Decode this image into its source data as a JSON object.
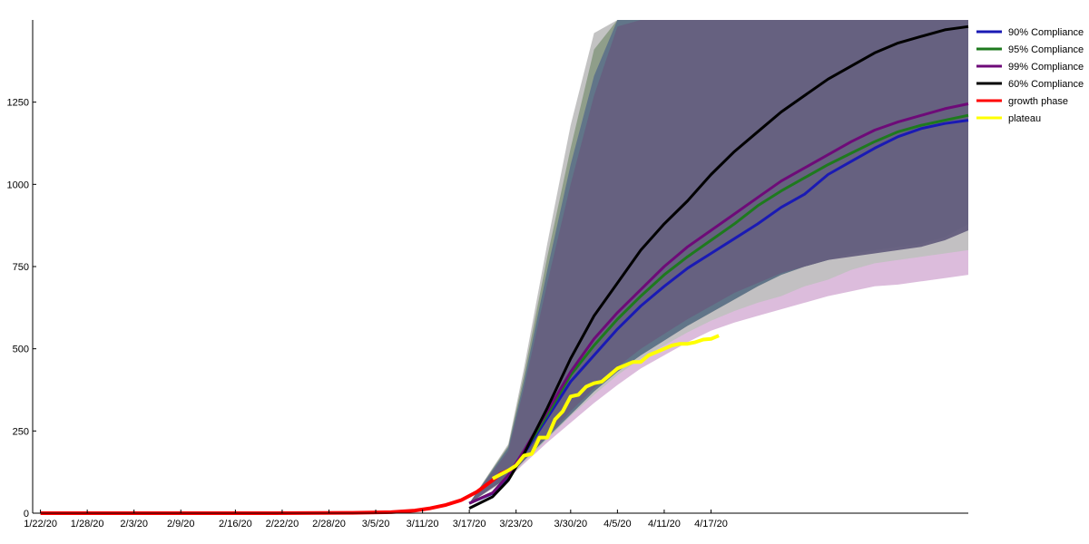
{
  "chart_data": {
    "type": "line",
    "title": "",
    "xlabel": "",
    "ylabel": "",
    "x_ticks": [
      "1/22/20",
      "1/28/20",
      "2/3/20",
      "2/9/20",
      "2/16/20",
      "2/22/20",
      "2/28/20",
      "3/5/20",
      "3/11/20",
      "3/17/20",
      "3/23/20",
      "3/30/20",
      "4/5/20",
      "4/11/20",
      "4/17/20"
    ],
    "x_tick_day": [
      0,
      6,
      12,
      18,
      25,
      31,
      37,
      43,
      49,
      55,
      61,
      68,
      74,
      80,
      86
    ],
    "xlim_day": [
      -1,
      119
    ],
    "ylim": [
      0,
      1500
    ],
    "y_ticks": [
      0,
      250,
      500,
      750,
      1000,
      1250
    ],
    "grid": false,
    "legend_position": "top-right",
    "colors": {
      "90": "#1a1ab4",
      "95": "#1e7a1e",
      "99": "#6e0a78",
      "60": "#000000",
      "growth": "#ff0000",
      "plateau": "#ffff00"
    },
    "series": [
      {
        "name": "90% Compliance",
        "color_key": "90",
        "x": [
          55,
          58,
          60,
          62,
          65,
          68,
          71,
          74,
          77,
          80,
          83,
          86,
          89,
          92,
          95,
          98,
          101,
          104,
          107,
          110,
          113,
          116,
          119
        ],
        "y": [
          30,
          60,
          110,
          180,
          290,
          400,
          480,
          560,
          630,
          690,
          745,
          790,
          835,
          880,
          930,
          970,
          1030,
          1070,
          1110,
          1145,
          1170,
          1185,
          1195
        ]
      },
      {
        "name": "95% Compliance",
        "color_key": "95",
        "x": [
          55,
          58,
          60,
          62,
          65,
          68,
          71,
          74,
          77,
          80,
          83,
          86,
          89,
          92,
          95,
          98,
          101,
          104,
          107,
          110,
          113,
          116,
          119
        ],
        "y": [
          30,
          62,
          115,
          185,
          300,
          420,
          510,
          590,
          660,
          725,
          780,
          830,
          880,
          935,
          980,
          1020,
          1060,
          1095,
          1130,
          1160,
          1180,
          1195,
          1210
        ]
      },
      {
        "name": "99% Compliance",
        "color_key": "99",
        "x": [
          55,
          58,
          60,
          62,
          65,
          68,
          71,
          74,
          77,
          80,
          83,
          86,
          89,
          92,
          95,
          98,
          101,
          104,
          107,
          110,
          113,
          116,
          119
        ],
        "y": [
          30,
          62,
          115,
          190,
          310,
          430,
          530,
          610,
          680,
          750,
          810,
          860,
          910,
          960,
          1010,
          1050,
          1090,
          1130,
          1165,
          1190,
          1210,
          1230,
          1245
        ]
      },
      {
        "name": "60% Compliance",
        "color_key": "60",
        "x": [
          55,
          58,
          60,
          62,
          65,
          68,
          71,
          74,
          77,
          80,
          83,
          86,
          89,
          92,
          95,
          98,
          101,
          104,
          107,
          110,
          113,
          116,
          119
        ],
        "y": [
          15,
          50,
          100,
          180,
          320,
          470,
          600,
          700,
          800,
          880,
          950,
          1030,
          1100,
          1160,
          1220,
          1270,
          1320,
          1360,
          1400,
          1430,
          1450,
          1470,
          1480
        ]
      },
      {
        "name": "growth phase",
        "color_key": "growth",
        "x": [
          0,
          10,
          20,
          30,
          40,
          45,
          48,
          50,
          52,
          54,
          56,
          58,
          59,
          60
        ],
        "y": [
          0,
          0,
          0,
          0,
          1,
          3,
          8,
          15,
          25,
          40,
          65,
          100,
          120,
          130
        ]
      },
      {
        "name": "plateau",
        "color_key": "plateau",
        "x": [
          58,
          60,
          61,
          62,
          63,
          64,
          65,
          66,
          67,
          68,
          69,
          70,
          71,
          72,
          73,
          74,
          75,
          76,
          77,
          78,
          79,
          80,
          81,
          82,
          83,
          84,
          85,
          86,
          87
        ],
        "y": [
          105,
          130,
          145,
          175,
          180,
          230,
          230,
          285,
          310,
          355,
          360,
          385,
          395,
          400,
          420,
          440,
          450,
          460,
          460,
          480,
          490,
          500,
          510,
          515,
          515,
          520,
          528,
          530,
          540
        ]
      }
    ],
    "bands": [
      {
        "lower_x": [
          55,
          60,
          62,
          65,
          68,
          71,
          74,
          77,
          80,
          83,
          86,
          89,
          92,
          95,
          98,
          101,
          104,
          107,
          110,
          113,
          116,
          119
        ],
        "lower_y": [
          30,
          105,
          150,
          215,
          275,
          335,
          390,
          440,
          480,
          520,
          555,
          580,
          600,
          620,
          640,
          660,
          675,
          690,
          695,
          705,
          715,
          725
        ],
        "upper_x": [
          55,
          60,
          62,
          65,
          68,
          71,
          74,
          77,
          80,
          83,
          86,
          89,
          92,
          95,
          98,
          101,
          104,
          107,
          110,
          113,
          116,
          119
        ],
        "upper_y": [
          30,
          200,
          420,
          760,
          1060,
          1340,
          1500,
          1500,
          1500,
          1500,
          1500,
          1500,
          1500,
          1500,
          1500,
          1500,
          1500,
          1500,
          1500,
          1500,
          1500,
          1500
        ],
        "color": "#dab8da",
        "opacity": 0.95
      },
      {
        "lower_x": [
          55,
          60,
          62,
          65,
          68,
          71,
          74,
          77,
          80,
          83,
          86,
          89,
          92,
          95,
          98,
          101,
          104,
          107,
          110,
          113,
          116,
          119
        ],
        "lower_y": [
          30,
          105,
          155,
          225,
          295,
          360,
          420,
          470,
          510,
          550,
          585,
          615,
          640,
          660,
          690,
          710,
          740,
          760,
          770,
          780,
          790,
          800
        ],
        "upper_x": [
          55,
          60,
          62,
          65,
          68,
          71,
          74,
          77,
          80,
          83,
          86,
          89,
          92,
          95,
          98,
          101,
          104,
          107,
          110,
          113,
          116,
          119
        ],
        "upper_y": [
          30,
          210,
          440,
          820,
          1180,
          1460,
          1500,
          1500,
          1500,
          1500,
          1500,
          1500,
          1500,
          1500,
          1500,
          1500,
          1500,
          1500,
          1500,
          1500,
          1500,
          1500
        ],
        "color": "#c0c0c0",
        "opacity": 0.95
      },
      {
        "lower_x": [
          55,
          60,
          62,
          65,
          68,
          71,
          74,
          77,
          80,
          83,
          86,
          89,
          92,
          95,
          98,
          101,
          104,
          107,
          110,
          113,
          116,
          119
        ],
        "lower_y": [
          30,
          110,
          160,
          230,
          300,
          370,
          430,
          480,
          525,
          570,
          610,
          650,
          690,
          725,
          750,
          770,
          790,
          800,
          810,
          820,
          840,
          880
        ],
        "upper_x": [
          55,
          60,
          62,
          65,
          68,
          71,
          74,
          77,
          80,
          83,
          86,
          89,
          92,
          95,
          98,
          101,
          104,
          107,
          110,
          113,
          116,
          119
        ],
        "upper_y": [
          30,
          205,
          420,
          780,
          1110,
          1410,
          1500,
          1500,
          1500,
          1500,
          1500,
          1500,
          1500,
          1500,
          1500,
          1500,
          1500,
          1500,
          1500,
          1500,
          1500,
          1500
        ],
        "color": "#8a9a84",
        "opacity": 0.9
      },
      {
        "lower_x": [
          55,
          60,
          62,
          65,
          68,
          71,
          74,
          77,
          80,
          83,
          86,
          89,
          92,
          95,
          98,
          101,
          104,
          107,
          110,
          113,
          116,
          119
        ],
        "lower_y": [
          30,
          110,
          160,
          230,
          300,
          370,
          430,
          480,
          525,
          570,
          610,
          650,
          690,
          725,
          750,
          770,
          790,
          800,
          810,
          820,
          840,
          880
        ],
        "upper_x": [
          55,
          60,
          62,
          65,
          68,
          71,
          74,
          77,
          80,
          83,
          86,
          89,
          92,
          95,
          98,
          101,
          104,
          107,
          110,
          113,
          116,
          119
        ],
        "upper_y": [
          30,
          200,
          400,
          740,
          1060,
          1330,
          1500,
          1500,
          1500,
          1500,
          1500,
          1500,
          1500,
          1500,
          1500,
          1500,
          1500,
          1500,
          1500,
          1500,
          1500,
          1500
        ],
        "color": "#5c7088",
        "opacity": 0.9
      },
      {
        "lower_x": [
          55,
          60,
          62,
          65,
          68,
          71,
          74,
          77,
          80,
          83,
          86,
          89,
          92,
          95,
          98,
          101,
          104,
          107,
          110,
          113,
          116,
          119
        ],
        "lower_y": [
          30,
          110,
          160,
          235,
          310,
          380,
          445,
          500,
          545,
          590,
          630,
          670,
          700,
          730,
          750,
          770,
          780,
          790,
          800,
          810,
          830,
          860
        ],
        "upper_x": [
          55,
          60,
          62,
          65,
          68,
          71,
          74,
          77,
          80,
          83,
          86,
          89,
          92,
          95,
          98,
          101,
          104,
          107,
          110,
          113,
          116,
          119
        ],
        "upper_y": [
          30,
          190,
          380,
          700,
          1000,
          1270,
          1480,
          1500,
          1500,
          1500,
          1500,
          1500,
          1500,
          1500,
          1500,
          1500,
          1500,
          1500,
          1500,
          1500,
          1500,
          1500
        ],
        "color": "#666080",
        "opacity": 0.97
      }
    ]
  }
}
